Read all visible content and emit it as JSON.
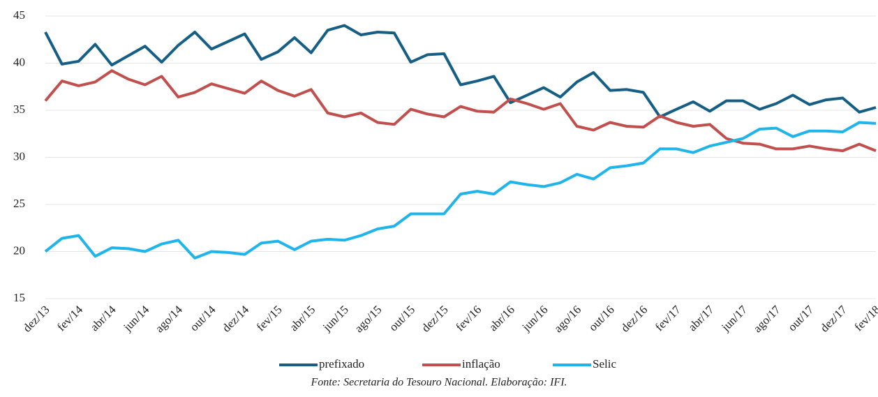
{
  "chart_data": {
    "type": "line",
    "categories": [
      "dez/13",
      null,
      "fev/14",
      null,
      "abr/14",
      null,
      "jun/14",
      null,
      "ago/14",
      null,
      "out/14",
      null,
      "dez/14",
      null,
      "fev/15",
      null,
      "abr/15",
      null,
      "jun/15",
      null,
      "ago/15",
      null,
      "out/15",
      null,
      "dez/15",
      null,
      "fev/16",
      null,
      "abr/16",
      null,
      "jun/16",
      null,
      "ago/16",
      null,
      "out/16",
      null,
      "dez/16",
      null,
      "fev/17",
      null,
      "abr/17",
      null,
      "jun/17",
      null,
      "ago/17",
      null,
      "out/17",
      null,
      "dez/17",
      null,
      "fev/18"
    ],
    "series": [
      {
        "name": "prefixado",
        "color": "#155f84",
        "values": [
          43.3,
          39.9,
          40.2,
          42.0,
          39.8,
          40.8,
          41.8,
          40.1,
          41.9,
          43.3,
          41.5,
          42.3,
          43.1,
          40.4,
          41.2,
          42.7,
          41.1,
          43.5,
          44.0,
          43.0,
          43.3,
          43.2,
          40.1,
          40.9,
          41.0,
          37.7,
          38.1,
          38.6,
          35.8,
          36.6,
          37.4,
          36.4,
          38.0,
          39.0,
          37.1,
          37.2,
          36.9,
          34.3,
          35.1,
          35.9,
          34.9,
          36.0,
          36.0,
          35.1,
          35.7,
          36.6,
          35.6,
          36.1,
          36.3,
          34.8,
          35.3
        ]
      },
      {
        "name": "inflação",
        "color": "#c0504d",
        "values": [
          36.0,
          38.1,
          37.6,
          38.0,
          39.2,
          38.3,
          37.7,
          38.6,
          36.4,
          36.9,
          37.8,
          37.3,
          36.8,
          38.1,
          37.1,
          36.5,
          37.2,
          34.7,
          34.3,
          34.7,
          33.7,
          33.5,
          35.1,
          34.6,
          34.3,
          35.4,
          34.9,
          34.8,
          36.2,
          35.7,
          35.1,
          35.7,
          33.3,
          32.9,
          33.7,
          33.3,
          33.2,
          34.4,
          33.7,
          33.3,
          33.5,
          32.0,
          31.5,
          31.4,
          30.9,
          30.9,
          31.2,
          30.9,
          30.7,
          31.4,
          30.7
        ]
      },
      {
        "name": "Selic",
        "color": "#1fb4ea",
        "values": [
          20.0,
          21.4,
          21.7,
          19.5,
          20.4,
          20.3,
          20.0,
          20.8,
          21.2,
          19.3,
          20.0,
          19.9,
          19.7,
          20.9,
          21.1,
          20.2,
          21.1,
          21.3,
          21.2,
          21.7,
          22.4,
          22.7,
          24.0,
          24.0,
          24.0,
          26.1,
          26.4,
          26.1,
          27.4,
          27.1,
          26.9,
          27.3,
          28.2,
          27.7,
          28.9,
          29.1,
          29.4,
          30.9,
          30.9,
          30.5,
          31.2,
          31.6,
          32.0,
          33.0,
          33.1,
          32.2,
          32.8,
          32.8,
          32.7,
          33.7,
          33.6
        ]
      }
    ],
    "ylim": [
      15,
      45
    ],
    "yticks": [
      15,
      20,
      25,
      30,
      35,
      40,
      45
    ],
    "grid": true,
    "legend": "bottom",
    "note": "Fonte: Secretaria do Tesouro Nacional. Elaboração: IFI."
  }
}
